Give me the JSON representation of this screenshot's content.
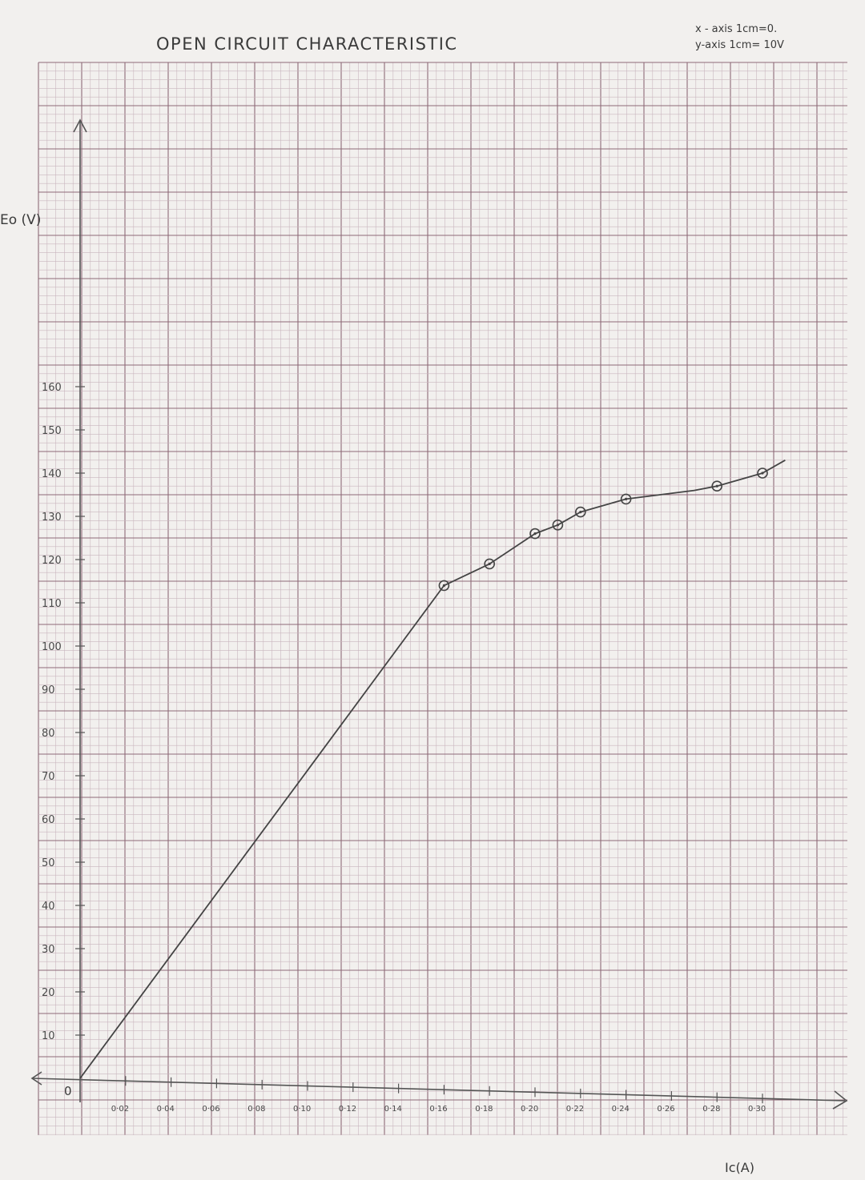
{
  "chart_data": {
    "type": "line",
    "title": "OPEN CIRCUIT CHARACTERISTIC",
    "scale_note": [
      "x - axis 1cm=0.",
      "y-axis 1cm= 10V"
    ],
    "xlabel": "Ic(A)",
    "ylabel": "Eo (V)",
    "origin_label": "0",
    "xlim": [
      0,
      0.32
    ],
    "ylim": [
      0,
      160
    ],
    "x_ticks": [
      "0·02",
      "0·04",
      "0·06",
      "0·08",
      "0·10",
      "0·12",
      "0·14",
      "0·16",
      "0·18",
      "0·20",
      "0·22",
      "0·24",
      "0·26",
      "0·28",
      "0·30"
    ],
    "y_ticks": [
      "10",
      "20",
      "30",
      "40",
      "50",
      "60",
      "70",
      "80",
      "90",
      "100",
      "110",
      "120",
      "130",
      "140",
      "150",
      "160"
    ],
    "grid": true,
    "series": [
      {
        "x": [
          0,
          0.16,
          0.18,
          0.2,
          0.21,
          0.22,
          0.24,
          0.27,
          0.28,
          0.3,
          0.31
        ],
        "y": [
          0,
          114,
          119,
          126,
          128,
          131,
          134,
          136,
          137,
          140,
          143
        ],
        "markers": [
          false,
          true,
          true,
          true,
          true,
          true,
          true,
          false,
          true,
          true,
          false
        ]
      }
    ]
  }
}
